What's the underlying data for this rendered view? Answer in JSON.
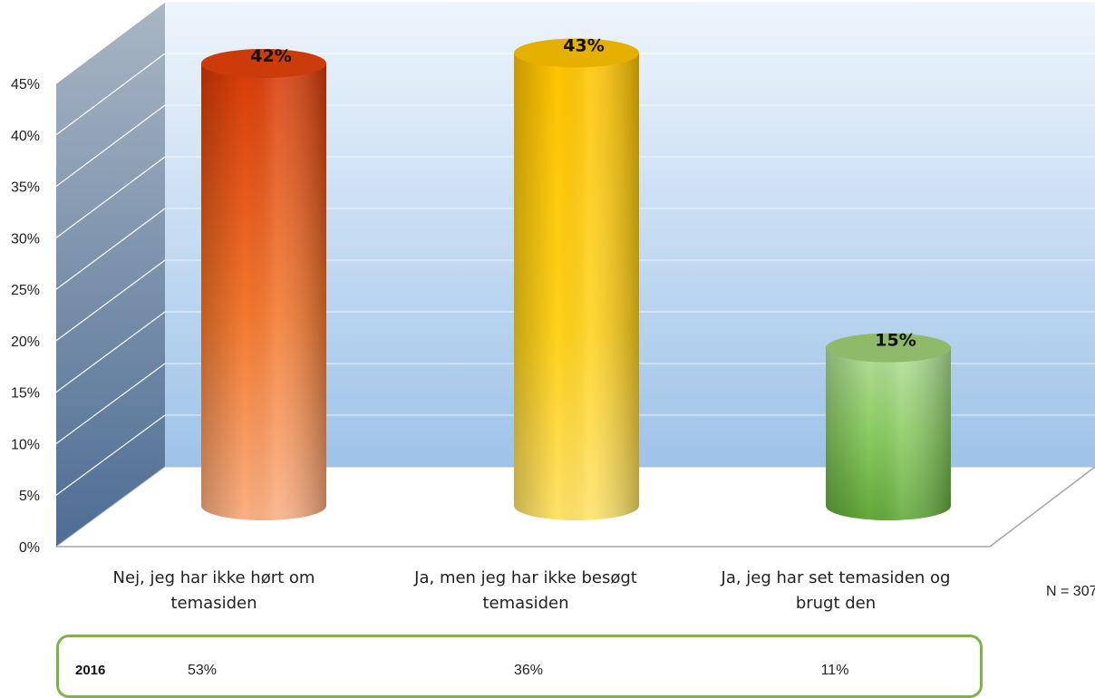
{
  "chart_data": {
    "type": "bar",
    "categories": [
      [
        "Nej, jeg har ikke hørt om",
        "temasiden"
      ],
      [
        "Ja, men jeg har ikke besøgt",
        "temasiden"
      ],
      [
        "Ja, jeg har set temasiden og",
        "brugt den"
      ]
    ],
    "values": [
      42,
      43,
      15
    ],
    "value_labels": [
      "42%",
      "43%",
      "15%"
    ],
    "colors": [
      "#e8531c",
      "#ffc000",
      "#70ad47"
    ],
    "ylim": [
      0,
      45
    ],
    "yticks": [
      "0%",
      "5%",
      "10%",
      "15%",
      "20%",
      "25%",
      "30%",
      "35%",
      "40%",
      "45%"
    ],
    "note": "N = 307",
    "title": "",
    "xlabel": "",
    "ylabel": ""
  },
  "comparison": {
    "year": "2016",
    "values": [
      "53%",
      "36%",
      "11%"
    ]
  }
}
